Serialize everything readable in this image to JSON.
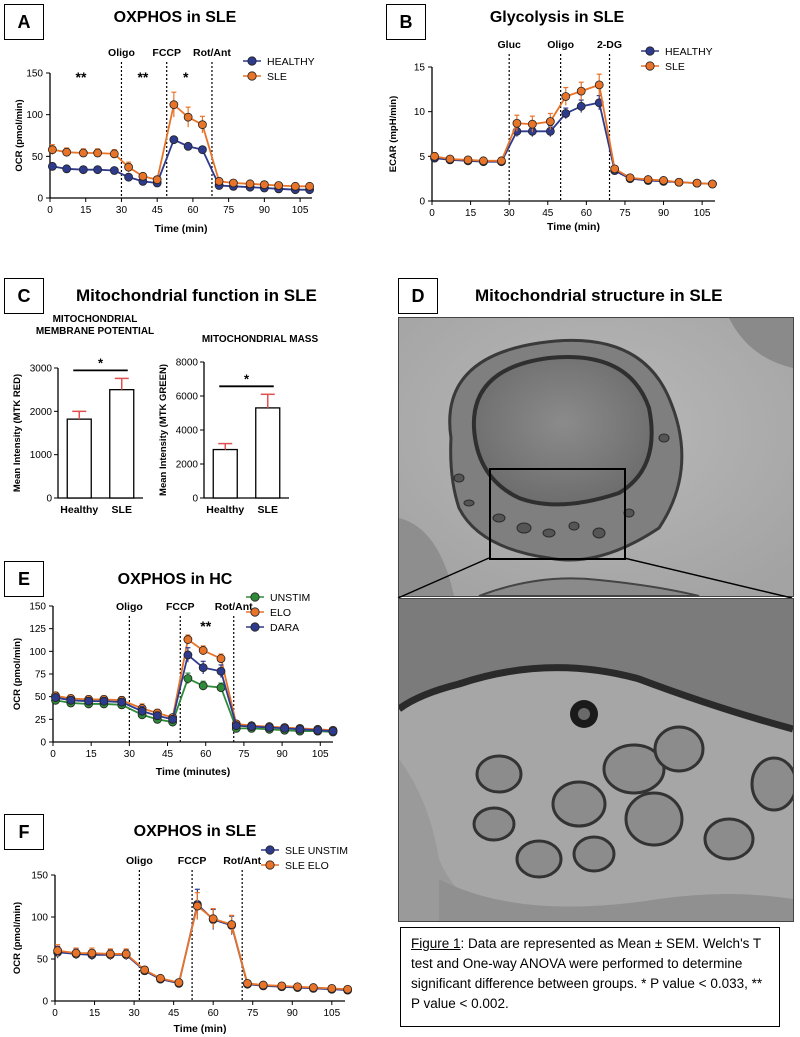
{
  "panels": {
    "A": {
      "letter": "A"
    },
    "B": {
      "letter": "B"
    },
    "C": {
      "letter": "C",
      "title": "Mitochondrial function in SLE"
    },
    "D": {
      "letter": "D",
      "title": "Mitochondrial structure in SLE"
    },
    "E": {
      "letter": "E"
    },
    "F": {
      "letter": "F"
    }
  },
  "colors": {
    "healthy": "#2e3a8c",
    "sle": "#e8742a",
    "unstim": "#2e8b3a",
    "elo": "#e8742a",
    "dara": "#2e3a8c",
    "sle_unstim": "#2e3a8c",
    "sle_elo": "#e8742a",
    "error_bar": "#e05050"
  },
  "caption": {
    "label": "Figure 1",
    "text": ": Data are represented as Mean ± SEM. Welch's T test and One-way ANOVA were performed to determine significant difference between groups. * P value < 0.033, ** P value < 0.002."
  },
  "chart_data": [
    {
      "id": "A",
      "type": "line",
      "title": "OXPHOS in SLE",
      "xlabel": "Time (min)",
      "ylabel": "OCR (pmol/min)",
      "xlim": [
        0,
        110
      ],
      "ylim": [
        0,
        150
      ],
      "xticks": [
        0,
        15,
        30,
        45,
        60,
        75,
        90,
        105
      ],
      "yticks": [
        0,
        50,
        100,
        150
      ],
      "injections": [
        {
          "x": 30,
          "label": "Oligo"
        },
        {
          "x": 49,
          "label": "FCCP"
        },
        {
          "x": 68,
          "label": "Rot/Ant"
        }
      ],
      "annotations": [
        {
          "x": 13,
          "text": "**"
        },
        {
          "x": 39,
          "text": "**"
        },
        {
          "x": 57,
          "text": "*"
        }
      ],
      "legend_position": "top-right",
      "x": [
        1,
        7,
        14,
        20,
        27,
        33,
        39,
        45,
        52,
        58,
        64,
        71,
        77,
        84,
        90,
        96,
        103,
        109
      ],
      "series": [
        {
          "name": "HEALTHY",
          "color_key": "healthy",
          "values": [
            38,
            35,
            34,
            34,
            33,
            25,
            20,
            18,
            70,
            62,
            58,
            15,
            14,
            13,
            12,
            11,
            10,
            10
          ],
          "err": [
            2,
            2,
            2,
            2,
            2,
            3,
            2,
            2,
            3,
            3,
            3,
            2,
            1,
            1,
            1,
            1,
            1,
            1
          ]
        },
        {
          "name": "SLE",
          "color_key": "sle",
          "values": [
            58,
            55,
            54,
            54,
            53,
            37,
            26,
            22,
            112,
            97,
            88,
            20,
            18,
            17,
            16,
            15,
            14,
            14
          ],
          "err": [
            6,
            5,
            5,
            5,
            5,
            6,
            4,
            3,
            15,
            12,
            10,
            3,
            2,
            2,
            2,
            2,
            2,
            2
          ]
        }
      ]
    },
    {
      "id": "B",
      "type": "line",
      "title": "Glycolysis in SLE",
      "xlabel": "Time (min)",
      "ylabel": "ECAR (mpH/min)",
      "xlim": [
        0,
        110
      ],
      "ylim": [
        0,
        15
      ],
      "xticks": [
        0,
        15,
        30,
        45,
        60,
        75,
        90,
        105
      ],
      "yticks": [
        0,
        5,
        10,
        15
      ],
      "injections": [
        {
          "x": 30,
          "label": "Gluc"
        },
        {
          "x": 50,
          "label": "Oligo"
        },
        {
          "x": 69,
          "label": "2-DG"
        }
      ],
      "annotations": [],
      "legend_position": "top-right",
      "x": [
        1,
        7,
        14,
        20,
        27,
        33,
        39,
        46,
        52,
        58,
        65,
        71,
        77,
        84,
        90,
        96,
        103,
        109
      ],
      "series": [
        {
          "name": "HEALTHY",
          "color_key": "healthy",
          "values": [
            4.8,
            4.6,
            4.5,
            4.4,
            4.4,
            7.8,
            7.8,
            7.8,
            9.8,
            10.6,
            11.0,
            3.4,
            2.5,
            2.3,
            2.2,
            2.1,
            2.0,
            1.9
          ],
          "err": [
            0.3,
            0.3,
            0.3,
            0.3,
            0.3,
            0.6,
            0.6,
            0.6,
            0.6,
            0.7,
            0.8,
            0.3,
            0.2,
            0.2,
            0.2,
            0.2,
            0.2,
            0.2
          ]
        },
        {
          "name": "SLE",
          "color_key": "sle",
          "values": [
            5.0,
            4.7,
            4.6,
            4.5,
            4.5,
            8.7,
            8.6,
            8.9,
            11.7,
            12.3,
            13.0,
            3.6,
            2.6,
            2.4,
            2.3,
            2.1,
            2.0,
            1.9
          ],
          "err": [
            0.4,
            0.3,
            0.3,
            0.3,
            0.3,
            0.9,
            0.9,
            0.9,
            1.0,
            1.0,
            1.2,
            0.3,
            0.2,
            0.2,
            0.2,
            0.2,
            0.2,
            0.2
          ]
        }
      ]
    },
    {
      "id": "C1",
      "type": "bar",
      "title": "MITOCHONDRIAL MEMBRANE POTENTIAL",
      "xlabel": "",
      "ylabel": "Mean Intensity (MTK RED)",
      "ylim": [
        0,
        3000
      ],
      "yticks": [
        0,
        1000,
        2000,
        3000
      ],
      "categories": [
        "Healthy",
        "SLE"
      ],
      "values": [
        1820,
        2500
      ],
      "err": [
        180,
        260
      ],
      "significance": "*"
    },
    {
      "id": "C2",
      "type": "bar",
      "title": "MITOCHONDRIAL MASS",
      "xlabel": "",
      "ylabel": "Mean Intensity (MTK GREEN)",
      "ylim": [
        0,
        8000
      ],
      "yticks": [
        0,
        2000,
        4000,
        6000,
        8000
      ],
      "categories": [
        "Healthy",
        "SLE"
      ],
      "values": [
        2850,
        5300
      ],
      "err": [
        350,
        800
      ],
      "significance": "*"
    },
    {
      "id": "E",
      "type": "line",
      "title": "OXPHOS in HC",
      "xlabel": "Time (minutes)",
      "ylabel": "OCR (pmol/min)",
      "xlim": [
        0,
        110
      ],
      "ylim": [
        0,
        150
      ],
      "xticks": [
        0,
        15,
        30,
        45,
        60,
        75,
        90,
        105
      ],
      "yticks": [
        0,
        25,
        50,
        75,
        100,
        125,
        150
      ],
      "injections": [
        {
          "x": 30,
          "label": "Oligo"
        },
        {
          "x": 50,
          "label": "FCCP"
        },
        {
          "x": 71,
          "label": "Rot/Ant"
        }
      ],
      "annotations": [
        {
          "x": 60,
          "text": "**"
        }
      ],
      "legend_position": "top-right",
      "x": [
        1,
        7,
        14,
        20,
        27,
        35,
        41,
        47,
        53,
        59,
        66,
        72,
        78,
        85,
        91,
        97,
        104,
        110
      ],
      "series": [
        {
          "name": "UNSTIM",
          "color_key": "unstim",
          "values": [
            46,
            43,
            42,
            42,
            41,
            30,
            25,
            22,
            70,
            62,
            60,
            15,
            15,
            14,
            13,
            12,
            12,
            11
          ],
          "err": [
            3,
            3,
            3,
            3,
            3,
            4,
            3,
            3,
            6,
            5,
            5,
            2,
            2,
            2,
            2,
            2,
            2,
            2
          ]
        },
        {
          "name": "ELO",
          "color_key": "elo",
          "values": [
            51,
            48,
            47,
            47,
            46,
            37,
            32,
            27,
            113,
            101,
            92,
            20,
            18,
            17,
            16,
            15,
            14,
            13
          ],
          "err": [
            4,
            4,
            4,
            4,
            4,
            5,
            4,
            3,
            5,
            5,
            5,
            3,
            2,
            2,
            2,
            2,
            2,
            2
          ]
        },
        {
          "name": "DARA",
          "color_key": "dara",
          "values": [
            49,
            46,
            45,
            45,
            44,
            34,
            29,
            25,
            96,
            82,
            78,
            18,
            17,
            16,
            15,
            14,
            13,
            12
          ],
          "err": [
            4,
            4,
            4,
            4,
            4,
            5,
            4,
            3,
            8,
            7,
            7,
            2,
            2,
            2,
            2,
            2,
            2,
            2
          ]
        }
      ]
    },
    {
      "id": "F",
      "type": "line",
      "title": "OXPHOS in SLE",
      "xlabel": "Time (min)",
      "ylabel": "OCR (pmol/min)",
      "xlim": [
        0,
        110
      ],
      "ylim": [
        0,
        150
      ],
      "xticks": [
        0,
        15,
        30,
        45,
        60,
        75,
        90,
        105
      ],
      "yticks": [
        0,
        50,
        100,
        150
      ],
      "injections": [
        {
          "x": 32,
          "label": "Oligo"
        },
        {
          "x": 52,
          "label": "FCCP"
        },
        {
          "x": 71,
          "label": "Rot/Ant"
        }
      ],
      "annotations": [],
      "legend_position": "top-right",
      "x": [
        1,
        8,
        14,
        21,
        27,
        34,
        40,
        47,
        54,
        60,
        67,
        73,
        79,
        86,
        92,
        98,
        105,
        111
      ],
      "series": [
        {
          "name": "SLE UNSTIM",
          "color_key": "sle_unstim",
          "values": [
            58,
            56,
            55,
            55,
            55,
            36,
            26,
            21,
            115,
            97,
            90,
            20,
            18,
            17,
            16,
            15,
            14,
            13
          ],
          "err": [
            7,
            6,
            6,
            6,
            6,
            4,
            3,
            2,
            18,
            12,
            11,
            2,
            2,
            2,
            2,
            2,
            2,
            2
          ]
        },
        {
          "name": "SLE ELO",
          "color_key": "sle_elo",
          "values": [
            60,
            57,
            57,
            56,
            56,
            37,
            27,
            22,
            113,
            98,
            91,
            21,
            19,
            18,
            17,
            16,
            15,
            14
          ],
          "err": [
            7,
            6,
            6,
            6,
            6,
            4,
            3,
            2,
            16,
            12,
            11,
            2,
            2,
            2,
            2,
            2,
            2,
            2
          ]
        }
      ]
    }
  ]
}
